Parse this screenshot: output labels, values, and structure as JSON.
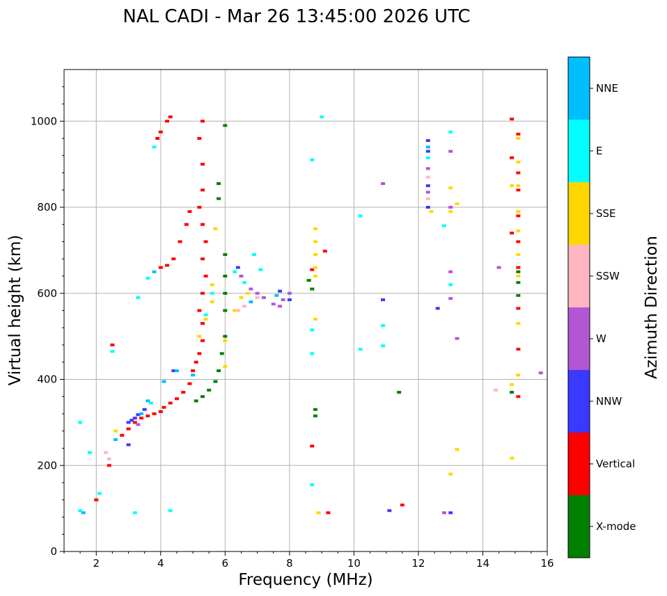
{
  "chart_data": {
    "type": "scatter",
    "title": "NAL CADI - Mar 26 13:45:00 2026 UTC",
    "xlabel": "Frequency (MHz)",
    "ylabel": "Virtual height (km)",
    "xlim": [
      1,
      16
    ],
    "ylim": [
      0,
      1120
    ],
    "xticks": [
      2,
      4,
      6,
      8,
      10,
      12,
      14,
      16
    ],
    "yticks": [
      0,
      200,
      400,
      600,
      800,
      1000
    ],
    "grid": true,
    "colorbar": {
      "title": "Azimuth Direction",
      "categories": [
        {
          "name": "X-mode",
          "color": "#008000"
        },
        {
          "name": "Vertical",
          "color": "#ff0000"
        },
        {
          "name": "NNW",
          "color": "#3a3aff"
        },
        {
          "name": "W",
          "color": "#b157d6"
        },
        {
          "name": "SSW",
          "color": "#ffb6c1"
        },
        {
          "name": "SSE",
          "color": "#ffd700"
        },
        {
          "name": "E",
          "color": "#00ffff"
        },
        {
          "name": "NNE",
          "color": "#00bfff"
        }
      ]
    },
    "series": [
      {
        "name": "Vertical",
        "points": [
          [
            2.0,
            120
          ],
          [
            2.4,
            200
          ],
          [
            2.5,
            480
          ],
          [
            2.8,
            270
          ],
          [
            3.0,
            285
          ],
          [
            3.2,
            300
          ],
          [
            3.4,
            310
          ],
          [
            3.6,
            315
          ],
          [
            3.8,
            320
          ],
          [
            4.0,
            325
          ],
          [
            4.1,
            335
          ],
          [
            4.3,
            345
          ],
          [
            4.5,
            355
          ],
          [
            4.7,
            370
          ],
          [
            4.9,
            390
          ],
          [
            5.0,
            420
          ],
          [
            5.1,
            440
          ],
          [
            5.2,
            460
          ],
          [
            5.3,
            490
          ],
          [
            5.3,
            530
          ],
          [
            5.2,
            560
          ],
          [
            5.3,
            600
          ],
          [
            5.4,
            640
          ],
          [
            5.3,
            680
          ],
          [
            5.4,
            720
          ],
          [
            5.3,
            760
          ],
          [
            5.2,
            800
          ],
          [
            5.3,
            840
          ],
          [
            5.3,
            900
          ],
          [
            5.2,
            960
          ],
          [
            5.3,
            1000
          ],
          [
            4.9,
            790
          ],
          [
            4.8,
            760
          ],
          [
            4.6,
            720
          ],
          [
            4.4,
            680
          ],
          [
            4.2,
            665
          ],
          [
            4.0,
            660
          ],
          [
            3.9,
            960
          ],
          [
            4.0,
            975
          ],
          [
            4.2,
            1000
          ],
          [
            4.3,
            1010
          ],
          [
            8.7,
            655
          ],
          [
            9.1,
            698
          ],
          [
            8.7,
            245
          ],
          [
            9.2,
            90
          ],
          [
            11.5,
            108
          ],
          [
            14.9,
            1005
          ],
          [
            14.9,
            915
          ],
          [
            14.9,
            740
          ],
          [
            15.1,
            970
          ],
          [
            15.1,
            880
          ],
          [
            15.1,
            840
          ],
          [
            15.1,
            780
          ],
          [
            15.1,
            720
          ],
          [
            15.1,
            660
          ],
          [
            15.1,
            565
          ],
          [
            15.1,
            470
          ],
          [
            15.1,
            360
          ]
        ]
      },
      {
        "name": "X-mode",
        "points": [
          [
            5.1,
            350
          ],
          [
            5.3,
            360
          ],
          [
            5.5,
            375
          ],
          [
            5.7,
            395
          ],
          [
            5.8,
            420
          ],
          [
            5.9,
            460
          ],
          [
            6.0,
            500
          ],
          [
            6.0,
            560
          ],
          [
            6.0,
            600
          ],
          [
            6.0,
            640
          ],
          [
            6.0,
            690
          ],
          [
            6.0,
            990
          ],
          [
            5.8,
            820
          ],
          [
            5.8,
            855
          ],
          [
            8.6,
            630
          ],
          [
            8.7,
            610
          ],
          [
            8.8,
            330
          ],
          [
            8.8,
            315
          ],
          [
            11.4,
            370
          ],
          [
            14.9,
            370
          ],
          [
            15.1,
            625
          ],
          [
            15.1,
            595
          ],
          [
            15.1,
            650
          ]
        ]
      },
      {
        "name": "NNW",
        "points": [
          [
            3.0,
            300
          ],
          [
            3.1,
            305
          ],
          [
            3.2,
            310
          ],
          [
            3.3,
            318
          ],
          [
            3.5,
            330
          ],
          [
            3.0,
            248
          ],
          [
            4.4,
            420
          ],
          [
            6.4,
            660
          ],
          [
            7.7,
            605
          ],
          [
            8.0,
            585
          ],
          [
            10.9,
            585
          ],
          [
            11.1,
            95
          ],
          [
            12.3,
            955
          ],
          [
            12.3,
            930
          ],
          [
            12.3,
            850
          ],
          [
            12.3,
            800
          ],
          [
            12.6,
            565
          ],
          [
            13.0,
            90
          ]
        ]
      },
      {
        "name": "W",
        "points": [
          [
            3.3,
            295
          ],
          [
            6.5,
            640
          ],
          [
            6.8,
            610
          ],
          [
            7.0,
            600
          ],
          [
            7.2,
            590
          ],
          [
            7.5,
            575
          ],
          [
            7.7,
            570
          ],
          [
            7.8,
            585
          ],
          [
            8.0,
            600
          ],
          [
            10.9,
            855
          ],
          [
            12.3,
            890
          ],
          [
            12.3,
            835
          ],
          [
            13.0,
            930
          ],
          [
            13.0,
            800
          ],
          [
            13.0,
            650
          ],
          [
            13.0,
            588
          ],
          [
            13.2,
            495
          ],
          [
            14.5,
            660
          ],
          [
            15.8,
            415
          ],
          [
            12.8,
            90
          ]
        ]
      },
      {
        "name": "SSW",
        "points": [
          [
            2.3,
            230
          ],
          [
            2.4,
            215
          ],
          [
            6.4,
            560
          ],
          [
            6.6,
            570
          ],
          [
            6.8,
            580
          ],
          [
            7.0,
            590
          ],
          [
            12.3,
            870
          ],
          [
            12.3,
            820
          ],
          [
            14.4,
            375
          ]
        ]
      },
      {
        "name": "SSE",
        "points": [
          [
            5.2,
            500
          ],
          [
            5.4,
            540
          ],
          [
            5.6,
            580
          ],
          [
            5.6,
            620
          ],
          [
            5.7,
            750
          ],
          [
            6.0,
            490
          ],
          [
            6.0,
            430
          ],
          [
            6.3,
            560
          ],
          [
            6.5,
            590
          ],
          [
            6.7,
            600
          ],
          [
            8.8,
            750
          ],
          [
            8.8,
            720
          ],
          [
            8.8,
            690
          ],
          [
            8.8,
            660
          ],
          [
            8.8,
            640
          ],
          [
            8.8,
            540
          ],
          [
            8.9,
            90
          ],
          [
            12.4,
            790
          ],
          [
            13.0,
            845
          ],
          [
            13.0,
            790
          ],
          [
            13.0,
            180
          ],
          [
            13.2,
            808
          ],
          [
            13.2,
            237
          ],
          [
            14.9,
            850
          ],
          [
            14.9,
            388
          ],
          [
            14.9,
            217
          ],
          [
            15.1,
            960
          ],
          [
            15.1,
            905
          ],
          [
            15.1,
            850
          ],
          [
            15.1,
            790
          ],
          [
            15.1,
            745
          ],
          [
            15.1,
            690
          ],
          [
            15.1,
            640
          ],
          [
            15.1,
            530
          ],
          [
            15.1,
            410
          ],
          [
            2.6,
            280
          ]
        ]
      },
      {
        "name": "E",
        "points": [
          [
            1.5,
            300
          ],
          [
            1.5,
            95
          ],
          [
            1.8,
            230
          ],
          [
            2.1,
            135
          ],
          [
            2.5,
            465
          ],
          [
            3.3,
            590
          ],
          [
            3.6,
            635
          ],
          [
            3.7,
            345
          ],
          [
            3.8,
            940
          ],
          [
            5.4,
            550
          ],
          [
            5.6,
            600
          ],
          [
            6.3,
            650
          ],
          [
            6.6,
            625
          ],
          [
            6.9,
            690
          ],
          [
            7.1,
            655
          ],
          [
            8.7,
            910
          ],
          [
            8.7,
            515
          ],
          [
            8.7,
            460
          ],
          [
            8.7,
            155
          ],
          [
            9.0,
            1010
          ],
          [
            10.2,
            780
          ],
          [
            10.2,
            470
          ],
          [
            10.9,
            525
          ],
          [
            10.9,
            478
          ],
          [
            12.3,
            915
          ],
          [
            12.8,
            757
          ],
          [
            13.0,
            975
          ],
          [
            13.0,
            620
          ],
          [
            4.3,
            95
          ],
          [
            3.2,
            90
          ]
        ]
      },
      {
        "name": "NNE",
        "points": [
          [
            1.6,
            90
          ],
          [
            2.6,
            260
          ],
          [
            3.4,
            320
          ],
          [
            3.6,
            350
          ],
          [
            3.8,
            650
          ],
          [
            4.1,
            395
          ],
          [
            4.5,
            420
          ],
          [
            5.0,
            410
          ],
          [
            6.8,
            580
          ],
          [
            7.6,
            595
          ],
          [
            12.3,
            940
          ]
        ]
      }
    ]
  }
}
